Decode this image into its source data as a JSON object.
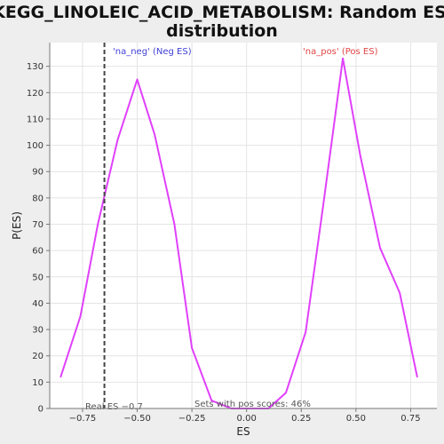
{
  "chart_data": {
    "type": "line",
    "title_line1": "KEGG_LINOLEIC_ACID_METABOLISM: Random ES",
    "title_line2": "distribution",
    "xlabel": "ES",
    "ylabel": "P(ES)",
    "xlim": [
      -0.9,
      0.87
    ],
    "ylim": [
      0,
      139
    ],
    "grid": true,
    "xticks": [
      {
        "value": -0.75,
        "label": "−0.75"
      },
      {
        "value": -0.5,
        "label": "−0.50"
      },
      {
        "value": -0.25,
        "label": "−0.25"
      },
      {
        "value": 0.0,
        "label": "0.00"
      },
      {
        "value": 0.25,
        "label": "0.25"
      },
      {
        "value": 0.5,
        "label": "0.50"
      },
      {
        "value": 0.75,
        "label": "0.75"
      }
    ],
    "yticks": [
      {
        "value": 0,
        "label": "0"
      },
      {
        "value": 10,
        "label": "10"
      },
      {
        "value": 20,
        "label": "20"
      },
      {
        "value": 30,
        "label": "30"
      },
      {
        "value": 40,
        "label": "40"
      },
      {
        "value": 50,
        "label": "50"
      },
      {
        "value": 60,
        "label": "60"
      },
      {
        "value": 70,
        "label": "70"
      },
      {
        "value": 80,
        "label": "80"
      },
      {
        "value": 90,
        "label": "90"
      },
      {
        "value": 100,
        "label": "100"
      },
      {
        "value": 110,
        "label": "110"
      },
      {
        "value": 120,
        "label": "120"
      },
      {
        "value": 130,
        "label": "130"
      }
    ],
    "series": [
      {
        "color": "#e040fb",
        "points": [
          {
            "x": -0.85,
            "y": 12
          },
          {
            "x": -0.76,
            "y": 35
          },
          {
            "x": -0.68,
            "y": 70
          },
          {
            "x": -0.59,
            "y": 102
          },
          {
            "x": -0.5,
            "y": 125
          },
          {
            "x": -0.42,
            "y": 104
          },
          {
            "x": -0.33,
            "y": 70
          },
          {
            "x": -0.25,
            "y": 23
          },
          {
            "x": -0.16,
            "y": 3
          },
          {
            "x": -0.07,
            "y": 0
          },
          {
            "x": 0.01,
            "y": 0
          },
          {
            "x": 0.1,
            "y": 0
          },
          {
            "x": 0.18,
            "y": 6
          },
          {
            "x": 0.27,
            "y": 29
          },
          {
            "x": 0.35,
            "y": 77
          },
          {
            "x": 0.44,
            "y": 133
          },
          {
            "x": 0.52,
            "y": 96
          },
          {
            "x": 0.61,
            "y": 61
          },
          {
            "x": 0.7,
            "y": 44
          },
          {
            "x": 0.78,
            "y": 12
          }
        ]
      }
    ],
    "real_es": {
      "x": -0.65,
      "label": "Real ES −0.7",
      "color": "#444444"
    },
    "annotations": {
      "neg_label": "'na_neg' (Neg ES)",
      "neg_color": "#3f3fd6",
      "pos_label": "'na_pos' (Pos ES)",
      "pos_color": "#e04545",
      "pos_scores_label": "Sets with pos scores: 46%"
    },
    "colors": {
      "plot_background": "#ffffff",
      "page_background": "#eeeeee",
      "grid": "#e4e4e4",
      "axis": "#777777"
    }
  }
}
